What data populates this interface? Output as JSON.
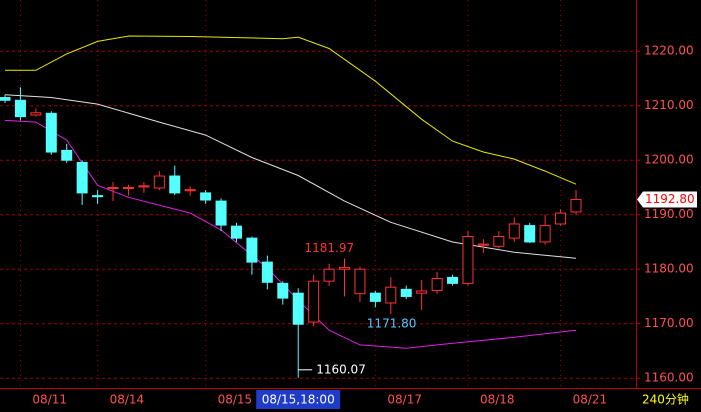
{
  "chart_data": {
    "type": "candlestick",
    "categories": [
      null,
      "08/11",
      null,
      null,
      null,
      null,
      "08/14",
      null,
      null,
      null,
      null,
      null,
      null,
      "08/15",
      null,
      null,
      null,
      null,
      null,
      "08/15,18:00",
      null,
      null,
      null,
      null,
      "08/17",
      null,
      null,
      null,
      null,
      null,
      "08/18",
      null,
      null,
      null,
      null,
      null,
      "08/21",
      null
    ],
    "cursor": 19,
    "open": [
      1211.5,
      1211.0,
      1208.3,
      1208.6,
      1201.8,
      1199.6,
      1193.5,
      1194.8,
      1194.8,
      1195.1,
      1194.9,
      1197.1,
      1194.4,
      1194.0,
      1192.5,
      1187.9,
      1185.7,
      1181.3,
      1177.4,
      1175.6,
      1170.3,
      1177.8,
      1180.0,
      1175.5,
      1175.6,
      1173.8,
      1176.3,
      1175.6,
      1176.1,
      1178.5,
      1177.4,
      1184.4,
      1184.2,
      1185.7,
      1188.0,
      1185.0,
      1188.3,
      1190.5
    ],
    "high": [
      1212.0,
      1213.4,
      1209.5,
      1209.0,
      1203.0,
      1200.0,
      1194.5,
      1196.0,
      1195.5,
      1196.0,
      1198.0,
      1199.0,
      1195.2,
      1194.5,
      1193.0,
      1188.5,
      1186.0,
      1182.5,
      1177.8,
      1176.5,
      1179.0,
      1181.0,
      1181.97,
      1180.5,
      1176.0,
      1178.5,
      1177.0,
      1178.0,
      1179.5,
      1179.0,
      1187.0,
      1185.5,
      1187.0,
      1189.5,
      1188.5,
      1190.0,
      1191.0,
      1194.5
    ],
    "low": [
      1210.5,
      1207.3,
      1208.0,
      1201.0,
      1199.5,
      1191.8,
      1192.0,
      1192.5,
      1193.5,
      1194.0,
      1194.5,
      1193.6,
      1193.5,
      1192.0,
      1187.0,
      1185.0,
      1179.0,
      1176.3,
      1173.5,
      1160.07,
      1169.5,
      1177.0,
      1175.0,
      1174.0,
      1173.0,
      1171.8,
      1174.5,
      1172.5,
      1175.5,
      1177.0,
      1177.0,
      1183.0,
      1183.8,
      1185.0,
      1184.8,
      1184.5,
      1188.0,
      1190.0
    ],
    "close": [
      1211.0,
      1208.0,
      1208.7,
      1201.5,
      1200.0,
      1194.0,
      1193.3,
      1195.0,
      1195.0,
      1195.3,
      1197.1,
      1194.0,
      1194.6,
      1192.7,
      1188.1,
      1185.7,
      1181.3,
      1177.6,
      1174.7,
      1169.9,
      1177.8,
      1180.0,
      1180.3,
      1180.0,
      1174.1,
      1176.7,
      1175.0,
      1176.0,
      1178.3,
      1177.4,
      1186.0,
      1184.6,
      1186.0,
      1188.3,
      1185.0,
      1188.0,
      1190.3,
      1192.8
    ],
    "up_color": "#ff3232",
    "down_color": "#54ffff",
    "bands": [
      {
        "color": "#e8e800",
        "x": [
          0,
          2,
          4,
          6,
          8,
          12,
          18,
          19,
          21,
          24,
          27,
          29,
          31,
          33,
          35,
          37
        ],
        "values": [
          1216.5,
          1216.5,
          1219.5,
          1221.8,
          1222.8,
          1222.7,
          1222.3,
          1222.6,
          1220.5,
          1214.5,
          1207.5,
          1203.5,
          1201.5,
          1200.2,
          1198.0,
          1195.6
        ]
      },
      {
        "color": "#e0e0e0",
        "x": [
          0,
          3,
          6,
          10,
          13,
          16,
          19,
          22,
          25,
          29,
          33,
          37
        ],
        "values": [
          1212.0,
          1211.5,
          1210.3,
          1207.0,
          1204.6,
          1200.5,
          1197.2,
          1192.5,
          1188.6,
          1185.0,
          1183.1,
          1182.0
        ]
      },
      {
        "color": "#e020e0",
        "x": [
          0,
          2,
          4,
          6,
          8,
          12,
          14,
          17,
          19,
          21,
          23,
          26,
          29,
          33,
          37
        ],
        "values": [
          1207.3,
          1207.0,
          1203.7,
          1195.4,
          1193.2,
          1190.3,
          1187.2,
          1180.2,
          1174.3,
          1168.8,
          1166.1,
          1165.5,
          1166.4,
          1167.5,
          1168.8
        ]
      }
    ],
    "annotations": [
      {
        "index": 22,
        "value": 1181.97,
        "label": "1181.97",
        "color": "#ff3232"
      },
      {
        "index": 25,
        "value": 1171.8,
        "label": "1171.80",
        "color": "#54c8ff"
      },
      {
        "index": 19,
        "value": 1160.07,
        "label": "1160.07",
        "color": "#ffffff"
      }
    ],
    "last_price": {
      "value": 1192.8,
      "label": "1192.80"
    },
    "period": "240分钟",
    "ylim": [
      1158.2,
      1229.4
    ],
    "yticks": [
      {
        "value": 1160,
        "label": "1160.00"
      },
      {
        "value": 1170,
        "label": "1170.00"
      },
      {
        "value": 1180,
        "label": "1180.00"
      },
      {
        "value": 1190,
        "label": "1190.00"
      },
      {
        "value": 1200,
        "label": "1200.00"
      },
      {
        "value": 1210,
        "label": "1210.00"
      },
      {
        "value": 1220,
        "label": "1220.00"
      }
    ],
    "grid": true
  }
}
